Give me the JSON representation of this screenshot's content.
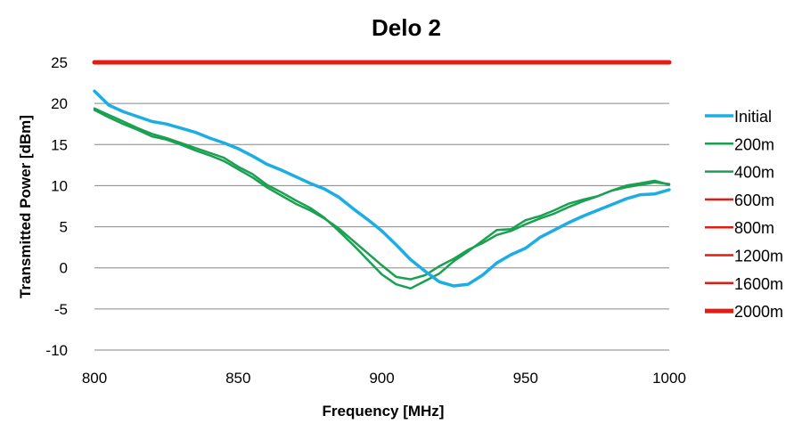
{
  "chart_data": {
    "type": "line",
    "title": "Delo 2",
    "xlabel": "Frequency [MHz]",
    "ylabel": "Transmitted Power [dBm]",
    "xlim": [
      800,
      1000
    ],
    "ylim": [
      -10,
      25
    ],
    "x_ticks": [
      "800",
      "850",
      "900",
      "950",
      "1000"
    ],
    "y_ticks": [
      "25",
      "20",
      "15",
      "10",
      "5",
      "0",
      "-5",
      "-10"
    ],
    "grid": "horizontal",
    "legend_position": "right",
    "x": [
      800,
      805,
      810,
      815,
      820,
      825,
      830,
      835,
      840,
      845,
      850,
      855,
      860,
      865,
      870,
      875,
      880,
      885,
      890,
      895,
      900,
      905,
      910,
      915,
      920,
      925,
      930,
      935,
      940,
      945,
      950,
      955,
      960,
      965,
      970,
      975,
      980,
      985,
      990,
      995,
      1000
    ],
    "series": [
      {
        "name": "Initial",
        "color": "#1cade4",
        "width": 3.5,
        "values": [
          21.5,
          19.8,
          19.0,
          18.4,
          17.8,
          17.5,
          17.0,
          16.5,
          15.8,
          15.2,
          14.5,
          13.6,
          12.6,
          11.9,
          11.1,
          10.3,
          9.6,
          8.6,
          7.2,
          5.9,
          4.5,
          2.8,
          1.0,
          -0.4,
          -1.7,
          -2.2,
          -2.0,
          -0.9,
          0.6,
          1.6,
          2.4,
          3.7,
          4.6,
          5.5,
          6.3,
          7.0,
          7.7,
          8.4,
          8.9,
          9.0,
          9.5
        ]
      },
      {
        "name": "200m",
        "color": "#1aa050",
        "width": 2.5,
        "values": [
          19.2,
          18.3,
          17.5,
          16.8,
          16.0,
          15.6,
          15.0,
          14.3,
          13.7,
          13.0,
          12.0,
          11.0,
          9.8,
          8.8,
          7.8,
          7.0,
          6.0,
          4.8,
          3.3,
          1.8,
          0.3,
          -1.1,
          -1.4,
          -0.9,
          0.2,
          1.1,
          2.2,
          3.0,
          4.0,
          4.5,
          5.3,
          6.0,
          6.6,
          7.4,
          8.1,
          8.7,
          9.4,
          9.8,
          10.1,
          10.4,
          10.2
        ]
      },
      {
        "name": "400m",
        "color": "#1aa050",
        "width": 2.5,
        "values": [
          19.4,
          18.6,
          17.8,
          17.0,
          16.3,
          15.8,
          15.2,
          14.6,
          14.0,
          13.4,
          12.3,
          11.4,
          10.1,
          9.2,
          8.2,
          7.3,
          6.1,
          4.5,
          2.8,
          1.0,
          -0.8,
          -2.0,
          -2.5,
          -1.6,
          -0.7,
          0.8,
          2.0,
          3.3,
          4.6,
          4.7,
          5.8,
          6.3,
          7.0,
          7.8,
          8.3,
          8.7,
          9.4,
          10.0,
          10.3,
          10.6,
          10.1
        ]
      },
      {
        "name": "600m",
        "color": "#e31b13",
        "width": 2.5,
        "values": [
          25,
          25,
          25,
          25,
          25,
          25,
          25,
          25,
          25,
          25,
          25,
          25,
          25,
          25,
          25,
          25,
          25,
          25,
          25,
          25,
          25,
          25,
          25,
          25,
          25,
          25,
          25,
          25,
          25,
          25,
          25,
          25,
          25,
          25,
          25,
          25,
          25,
          25,
          25,
          25,
          25
        ]
      },
      {
        "name": "800m",
        "color": "#e31b13",
        "width": 2.5,
        "values": [
          25,
          25,
          25,
          25,
          25,
          25,
          25,
          25,
          25,
          25,
          25,
          25,
          25,
          25,
          25,
          25,
          25,
          25,
          25,
          25,
          25,
          25,
          25,
          25,
          25,
          25,
          25,
          25,
          25,
          25,
          25,
          25,
          25,
          25,
          25,
          25,
          25,
          25,
          25,
          25,
          25
        ]
      },
      {
        "name": "1200m",
        "color": "#e31b13",
        "width": 2.5,
        "values": [
          25,
          25,
          25,
          25,
          25,
          25,
          25,
          25,
          25,
          25,
          25,
          25,
          25,
          25,
          25,
          25,
          25,
          25,
          25,
          25,
          25,
          25,
          25,
          25,
          25,
          25,
          25,
          25,
          25,
          25,
          25,
          25,
          25,
          25,
          25,
          25,
          25,
          25,
          25,
          25,
          25
        ]
      },
      {
        "name": "1600m",
        "color": "#e31b13",
        "width": 2.5,
        "values": [
          25,
          25,
          25,
          25,
          25,
          25,
          25,
          25,
          25,
          25,
          25,
          25,
          25,
          25,
          25,
          25,
          25,
          25,
          25,
          25,
          25,
          25,
          25,
          25,
          25,
          25,
          25,
          25,
          25,
          25,
          25,
          25,
          25,
          25,
          25,
          25,
          25,
          25,
          25,
          25,
          25
        ]
      },
      {
        "name": "2000m",
        "color": "#e31b13",
        "width": 5,
        "values": [
          25,
          25,
          25,
          25,
          25,
          25,
          25,
          25,
          25,
          25,
          25,
          25,
          25,
          25,
          25,
          25,
          25,
          25,
          25,
          25,
          25,
          25,
          25,
          25,
          25,
          25,
          25,
          25,
          25,
          25,
          25,
          25,
          25,
          25,
          25,
          25,
          25,
          25,
          25,
          25,
          25
        ]
      }
    ]
  }
}
